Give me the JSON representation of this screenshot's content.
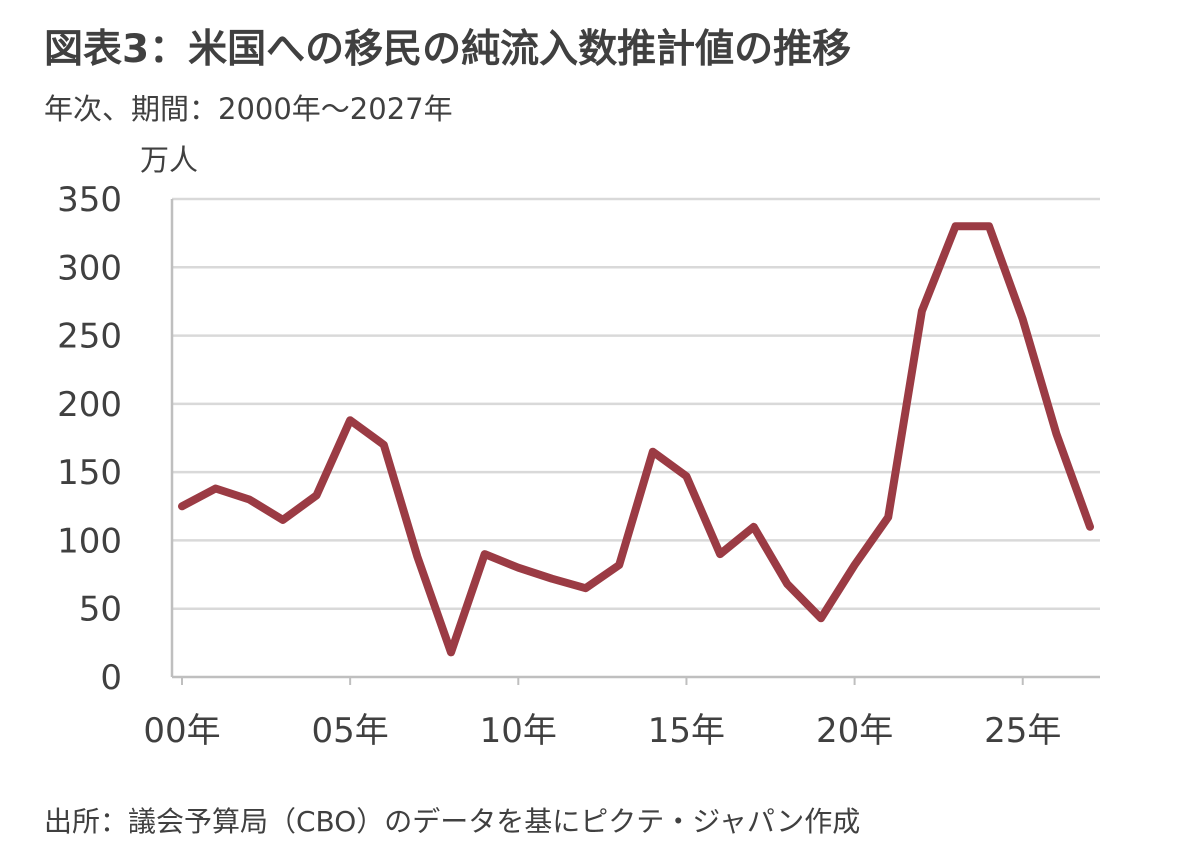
{
  "title": "図表3：米国への移民の純流入数推計値の推移",
  "subtitle": "年次、期間：2000年～2027年",
  "source": "出所：議会予算局（CBO）のデータを基にピクテ・ジャパン作成",
  "colors": {
    "line": "#9b3b44",
    "grid": "#d9d9d9",
    "axis": "#bfbfbf",
    "text": "#404040"
  },
  "chart_data": {
    "type": "line",
    "ylabel": "万人",
    "ylim": [
      0,
      350
    ],
    "xlim": [
      2000,
      2027
    ],
    "yticks": [
      0,
      50,
      100,
      150,
      200,
      250,
      300,
      350
    ],
    "xticks": [
      {
        "value": 2000,
        "label": "00年"
      },
      {
        "value": 2005,
        "label": "05年"
      },
      {
        "value": 2010,
        "label": "10年"
      },
      {
        "value": 2015,
        "label": "15年"
      },
      {
        "value": 2020,
        "label": "20年"
      },
      {
        "value": 2025,
        "label": "25年"
      }
    ],
    "grid": true,
    "series": [
      {
        "x": [
          2000,
          2001,
          2002,
          2003,
          2004,
          2005,
          2006,
          2007,
          2008,
          2009,
          2010,
          2011,
          2012,
          2013,
          2014,
          2015,
          2016,
          2017,
          2018,
          2019,
          2020,
          2021,
          2022,
          2023,
          2024,
          2025,
          2026,
          2027
        ],
        "values": [
          125,
          138,
          130,
          115,
          133,
          188,
          170,
          88,
          18,
          90,
          80,
          72,
          65,
          82,
          165,
          147,
          90,
          110,
          68,
          43,
          82,
          117,
          268,
          330,
          330,
          262,
          178,
          110
        ]
      }
    ]
  }
}
